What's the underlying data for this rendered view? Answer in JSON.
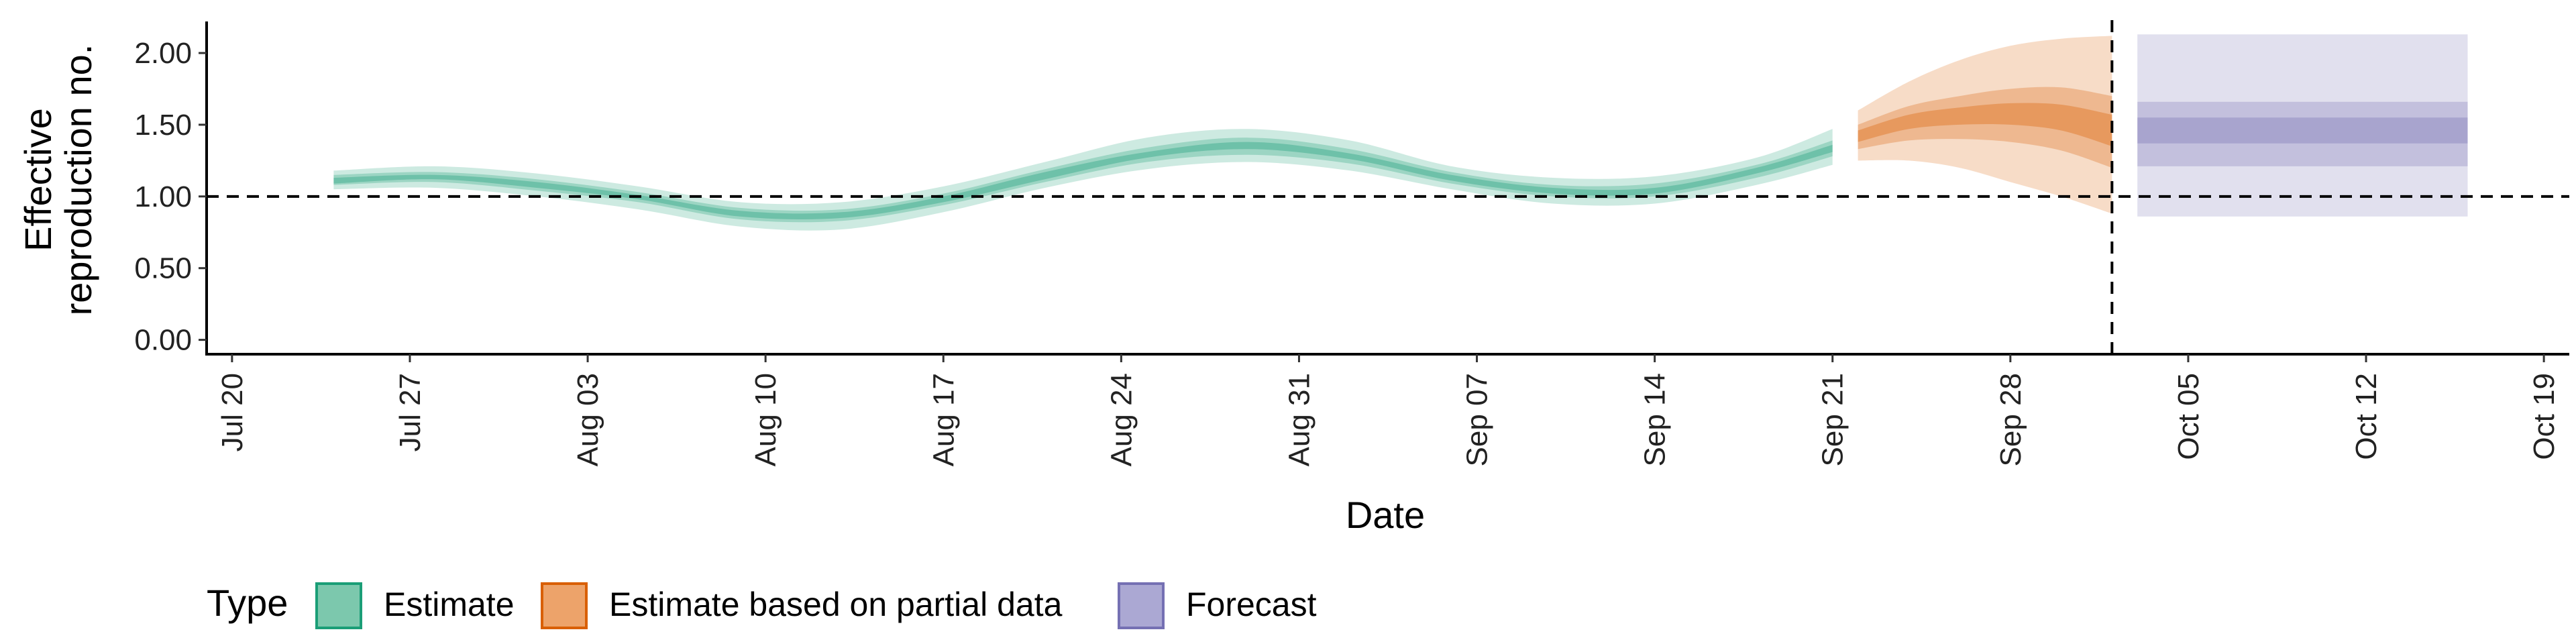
{
  "chart_data": {
    "type": "area",
    "xlabel": "Date",
    "ylabel_lines": [
      "Effective",
      "reproduction no."
    ],
    "y_ticks": [
      "0.00",
      "0.50",
      "1.00",
      "1.50",
      "2.00"
    ],
    "y_tick_values": [
      0,
      0.5,
      1,
      1.5,
      2
    ],
    "ylim": [
      -0.1,
      2.22
    ],
    "xlim": [
      "2020-07-19",
      "2020-10-20"
    ],
    "x_ticks": [
      "Jul 20",
      "Jul 27",
      "Aug 03",
      "Aug 10",
      "Aug 17",
      "Aug 24",
      "Aug 31",
      "Sep 07",
      "Sep 14",
      "Sep 21",
      "Sep 28",
      "Oct 05",
      "Oct 12",
      "Oct 19"
    ],
    "x_tick_dates": [
      "2020-07-20",
      "2020-07-27",
      "2020-08-03",
      "2020-08-10",
      "2020-08-17",
      "2020-08-24",
      "2020-08-31",
      "2020-09-07",
      "2020-09-14",
      "2020-09-21",
      "2020-09-28",
      "2020-10-05",
      "2020-10-12",
      "2020-10-19"
    ],
    "hline": 1.0,
    "vline": "2020-10-02",
    "legend": {
      "title": "Type",
      "position": "bottom",
      "items": [
        {
          "label": "Estimate",
          "fill": "#7CC8AD",
          "stroke": "#1B9E77"
        },
        {
          "label": "Estimate based on partial data",
          "fill": "#EDA36A",
          "stroke": "#D95F02"
        },
        {
          "label": "Forecast",
          "fill": "#ABA8D3",
          "stroke": "#7570B3"
        }
      ]
    },
    "series": [
      {
        "name": "Estimate",
        "color": "#1B9E77",
        "x": [
          "2020-07-24",
          "2020-07-28",
          "2020-08-01",
          "2020-08-05",
          "2020-08-09",
          "2020-08-13",
          "2020-08-17",
          "2020-08-21",
          "2020-08-25",
          "2020-08-29",
          "2020-09-02",
          "2020-09-06",
          "2020-09-10",
          "2020-09-14",
          "2020-09-18",
          "2020-09-21"
        ],
        "median": [
          1.11,
          1.13,
          1.08,
          0.99,
          0.88,
          0.87,
          0.98,
          1.14,
          1.29,
          1.35,
          1.28,
          1.13,
          1.04,
          1.04,
          1.18,
          1.33
        ],
        "lower_90": [
          1.05,
          1.06,
          1.0,
          0.91,
          0.79,
          0.77,
          0.89,
          1.06,
          1.19,
          1.24,
          1.18,
          1.05,
          0.95,
          0.95,
          1.08,
          1.22
        ],
        "upper_90": [
          1.18,
          1.21,
          1.16,
          1.07,
          0.96,
          0.96,
          1.07,
          1.24,
          1.41,
          1.47,
          1.39,
          1.21,
          1.13,
          1.14,
          1.27,
          1.47
        ],
        "lower_50": [
          1.08,
          1.1,
          1.04,
          0.96,
          0.84,
          0.83,
          0.94,
          1.1,
          1.24,
          1.29,
          1.23,
          1.09,
          1.0,
          1.0,
          1.13,
          1.28
        ],
        "upper_50": [
          1.15,
          1.17,
          1.12,
          1.03,
          0.92,
          0.91,
          1.02,
          1.19,
          1.34,
          1.41,
          1.33,
          1.17,
          1.08,
          1.09,
          1.22,
          1.39
        ],
        "lower_20": [
          1.09,
          1.12,
          1.06,
          0.98,
          0.86,
          0.85,
          0.96,
          1.12,
          1.27,
          1.33,
          1.26,
          1.11,
          1.02,
          1.02,
          1.16,
          1.31
        ],
        "upper_20": [
          1.13,
          1.15,
          1.1,
          1.01,
          0.9,
          0.89,
          1.0,
          1.17,
          1.31,
          1.38,
          1.3,
          1.15,
          1.06,
          1.06,
          1.2,
          1.36
        ]
      },
      {
        "name": "Estimate based on partial data",
        "color": "#D95F02",
        "x": [
          "2020-09-22",
          "2020-09-24",
          "2020-09-26",
          "2020-09-28",
          "2020-09-30",
          "2020-10-02"
        ],
        "median": [
          1.42,
          1.52,
          1.56,
          1.58,
          1.55,
          1.45
        ],
        "lower_90": [
          1.25,
          1.25,
          1.2,
          1.1,
          1.0,
          0.88
        ],
        "upper_90": [
          1.6,
          1.8,
          1.95,
          2.05,
          2.1,
          2.12
        ],
        "lower_50": [
          1.33,
          1.39,
          1.4,
          1.38,
          1.32,
          1.2
        ],
        "upper_50": [
          1.5,
          1.63,
          1.7,
          1.75,
          1.76,
          1.7
        ],
        "lower_20": [
          1.38,
          1.47,
          1.5,
          1.5,
          1.46,
          1.35
        ],
        "upper_20": [
          1.46,
          1.57,
          1.62,
          1.65,
          1.64,
          1.57
        ]
      },
      {
        "name": "Forecast",
        "color": "#7570B3",
        "x": [
          "2020-10-03",
          "2020-10-16"
        ],
        "median": [
          1.46,
          1.46
        ],
        "lower_90": [
          0.86,
          0.86
        ],
        "upper_90": [
          2.13,
          2.13
        ],
        "lower_50": [
          1.21,
          1.21
        ],
        "upper_50": [
          1.66,
          1.66
        ],
        "lower_20": [
          1.37,
          1.37
        ],
        "upper_20": [
          1.55,
          1.55
        ]
      }
    ]
  }
}
